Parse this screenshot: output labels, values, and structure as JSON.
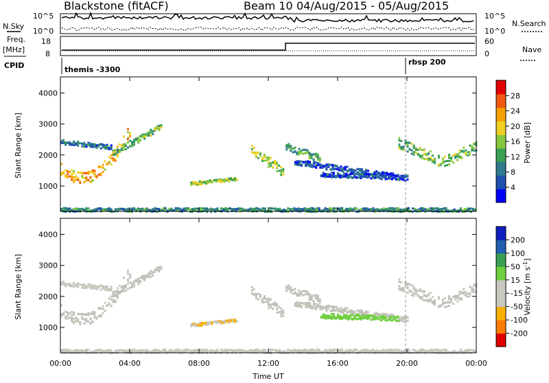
{
  "header": {
    "title": "Blackstone (fitACF)",
    "beam": "Beam 10",
    "dates": "04/Aug/2015 - 05/Aug/2015"
  },
  "summary": {
    "nsky_label": "N.Sky",
    "nsearch_label": "N.Search",
    "nsky_ticks": [
      "10^5",
      "10^0"
    ],
    "nsearch_ticks": [
      "10^5",
      "10^0"
    ],
    "freq_label_1": "Freq.",
    "freq_label_2": "[MHz]",
    "freq_ticks": [
      "18",
      "8"
    ],
    "nave_label": "Nave",
    "nave_ticks": [
      "60",
      "0"
    ],
    "cpid_label": "CPID",
    "cpid_1": "themis -3300",
    "cpid_2": "rbsp 200"
  },
  "colors": {
    "power": [
      "#0000ff",
      "#1f4fb0",
      "#2f7a8c",
      "#3aa055",
      "#86c83c",
      "#f0d020",
      "#f8a000",
      "#f05a10",
      "#e00000"
    ],
    "velocity": [
      "#e00000",
      "#ff7a00",
      "#f8b000",
      "#c8c8c0",
      "#c8c8c0",
      "#70d040",
      "#38a050",
      "#2060b0",
      "#1020c0"
    ],
    "ground_scatter": "#c0c0b8"
  },
  "chart_data": [
    {
      "type": "heatmap",
      "name": "power",
      "ylabel": "Slant Range [km]",
      "y_ticks": [
        "1000",
        "2000",
        "3000",
        "4000"
      ],
      "ylim": [
        180,
        4520
      ],
      "colorbar_label": "Power [dB]",
      "colorbar_ticks": [
        "4",
        "8",
        "12",
        "16",
        "20",
        "24",
        "28"
      ],
      "colorbar_range": [
        0,
        32
      ]
    },
    {
      "type": "heatmap",
      "name": "velocity",
      "ylabel": "Slant Range [km]",
      "y_ticks": [
        "1000",
        "2000",
        "3000",
        "4000"
      ],
      "ylim": [
        180,
        4520
      ],
      "colorbar_label": "Velocity [m s^-1]",
      "colorbar_ticks": [
        "-200",
        "-100",
        "-50",
        "-15",
        "15",
        "50",
        "100",
        "200"
      ],
      "x_ticks": [
        "00:00",
        "04:00",
        "08:00",
        "12:00",
        "16:00",
        "20:00",
        "00:00"
      ],
      "xlabel": "Time UT",
      "xlim": [
        0,
        24
      ]
    }
  ]
}
